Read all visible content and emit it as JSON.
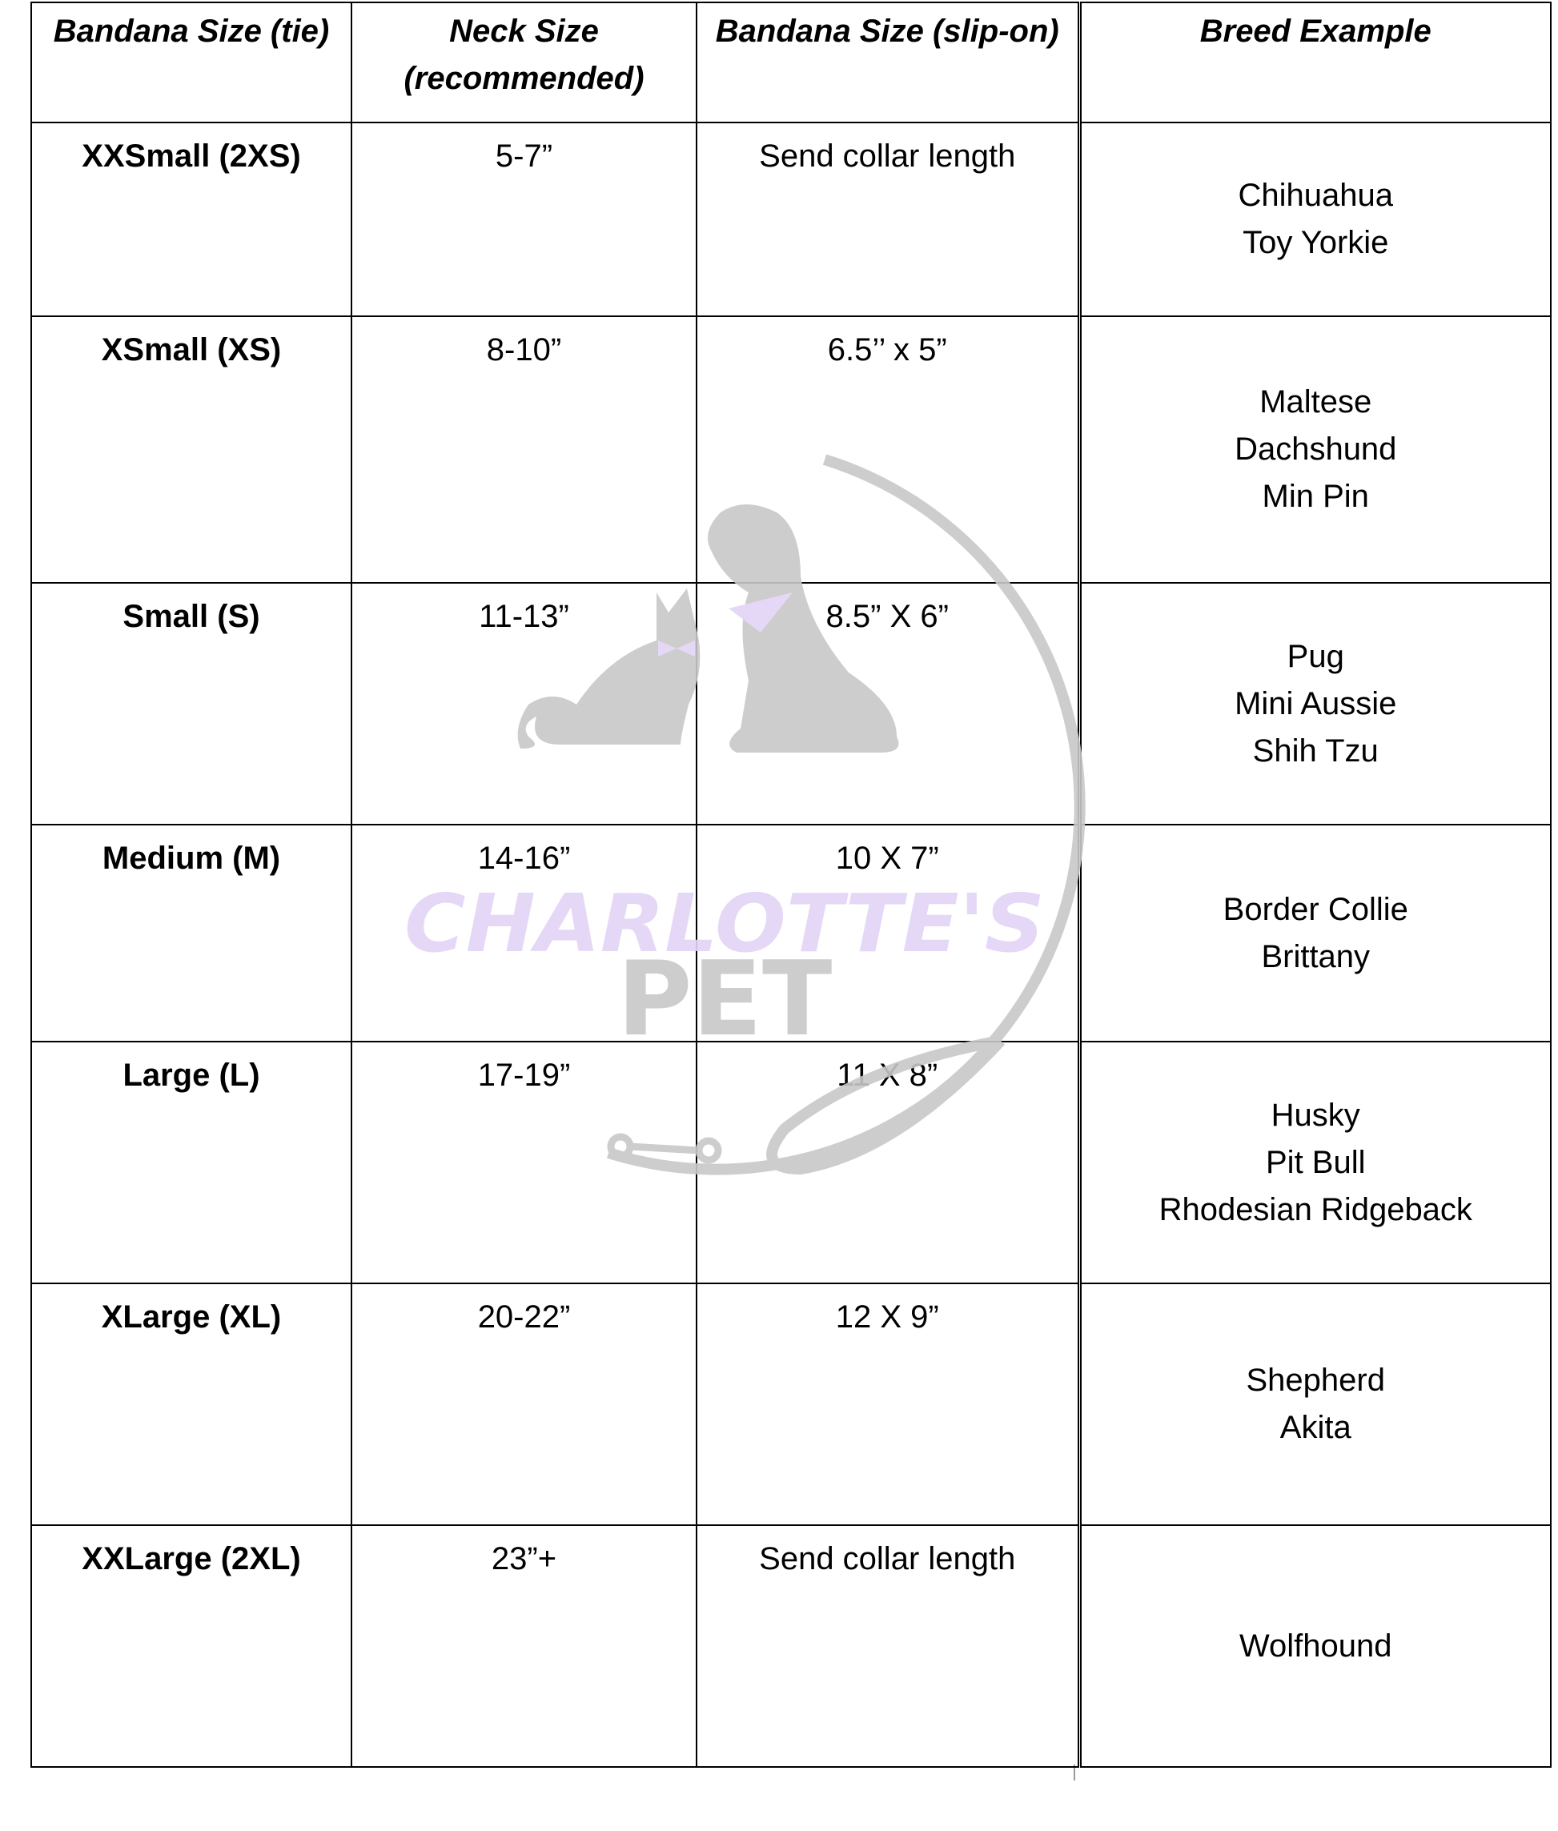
{
  "headers": [
    "Bandana Size (tie)",
    "Neck Size (recommended)",
    "Bandana Size (slip-on)",
    "Breed Example"
  ],
  "rows": [
    {
      "size": "XXSmall (2XS)",
      "neck": "5-7”",
      "slipon": "Send collar length",
      "breeds": [
        "Chihuahua",
        "Toy Yorkie"
      ]
    },
    {
      "size": "XSmall (XS)",
      "neck": "8-10”",
      "slipon": "6.5’’ x 5”",
      "breeds": [
        "Maltese",
        "Dachshund",
        "Min Pin"
      ]
    },
    {
      "size": "Small (S)",
      "neck": "11-13”",
      "slipon": "8.5” X 6”",
      "breeds": [
        "Pug",
        "Mini Aussie",
        "Shih Tzu"
      ]
    },
    {
      "size": "Medium (M)",
      "neck": "14-16”",
      "slipon": "10 X 7”",
      "breeds": [
        "Border Collie",
        "Brittany"
      ]
    },
    {
      "size": "Large (L)",
      "neck": "17-19”",
      "slipon": "11 X 8”",
      "breeds": [
        "Husky",
        "Pit Bull",
        "Rhodesian Ridgeback"
      ]
    },
    {
      "size": "XLarge (XL)",
      "neck": "20-22”",
      "slipon": "12 X 9”",
      "breeds": [
        "Shepherd",
        "Akita"
      ]
    },
    {
      "size": "XXLarge (2XL)",
      "neck": "23”+",
      "slipon": "Send collar length",
      "breeds": [
        "Wolfhound"
      ]
    }
  ],
  "watermark": {
    "line1": "CHARLOTTE'S",
    "line2": "PET",
    "gray": "#c8c8c8",
    "lavender": "#e3d4f7"
  }
}
